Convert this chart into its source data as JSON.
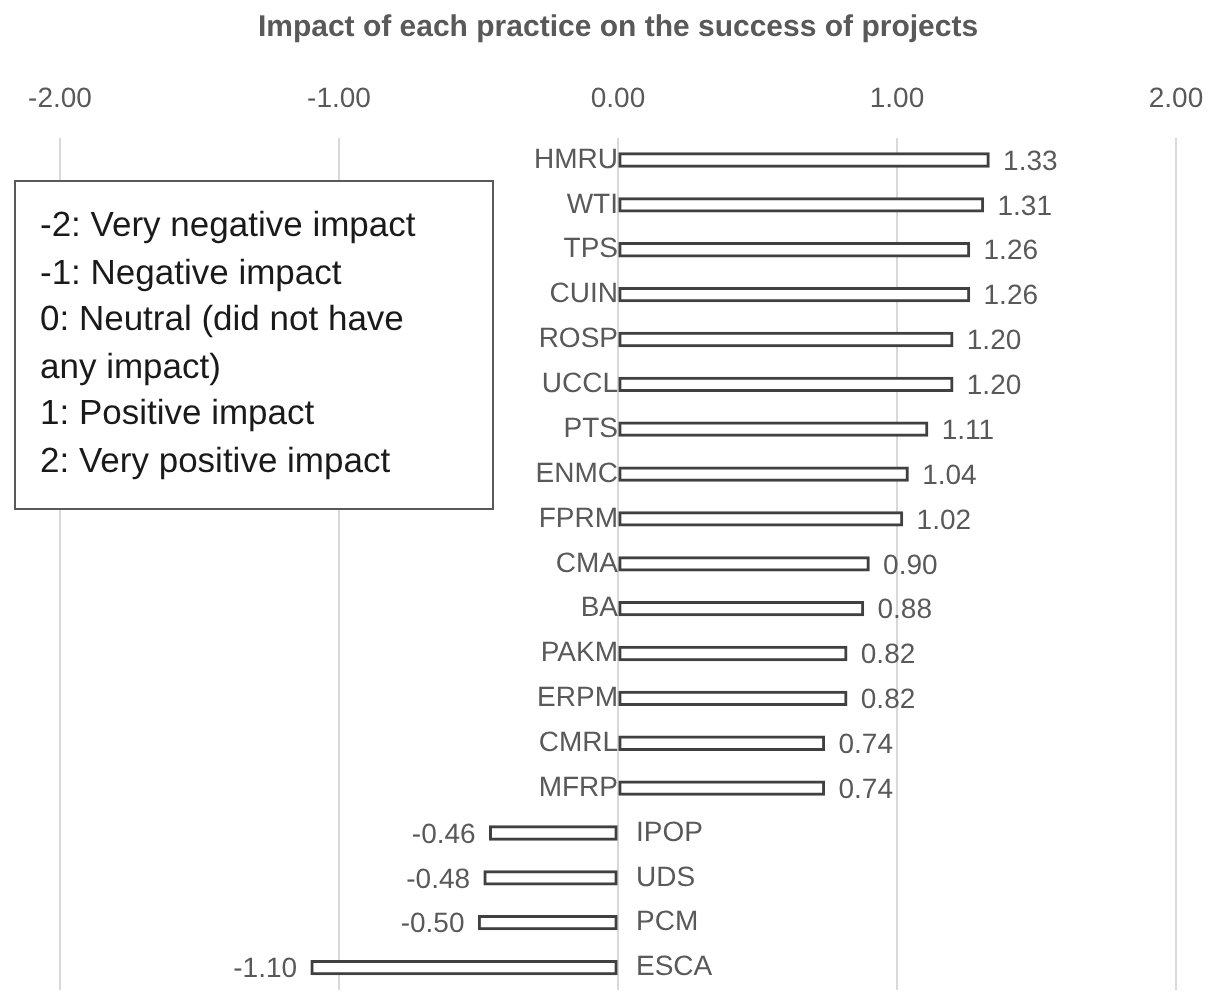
{
  "chart_data": {
    "type": "bar",
    "orientation": "horizontal",
    "title": "Impact of each practice on the success of projects",
    "categories": [
      "HMRU",
      "WTI",
      "TPS",
      "CUIN",
      "ROSP",
      "UCCL",
      "PTS",
      "ENMC",
      "FPRM",
      "CMA",
      "BA",
      "PAKM",
      "ERPM",
      "CMRL",
      "MFRP",
      "IPOP",
      "UDS",
      "PCM",
      "ESCA"
    ],
    "values": [
      1.33,
      1.31,
      1.26,
      1.26,
      1.2,
      1.2,
      1.11,
      1.04,
      1.02,
      0.9,
      0.88,
      0.82,
      0.82,
      0.74,
      0.74,
      -0.46,
      -0.48,
      -0.5,
      -1.1
    ],
    "value_labels": [
      "1.33",
      "1.31",
      "1.26",
      "1.26",
      "1.20",
      "1.20",
      "1.11",
      "1.04",
      "1.02",
      "0.90",
      "0.88",
      "0.82",
      "0.82",
      "0.74",
      "0.74",
      "-0.46",
      "-0.48",
      "-0.50",
      "-1.10"
    ],
    "color": "#ffffff",
    "xlim": [
      -2,
      2
    ],
    "xticks": [
      {
        "value": -2,
        "label": "-2.00"
      },
      {
        "value": -1,
        "label": "-1.00"
      },
      {
        "value": 0,
        "label": "0.00"
      },
      {
        "value": 1,
        "label": "1.00"
      },
      {
        "value": 2,
        "label": "2.00"
      }
    ],
    "grid": "x",
    "legend": false,
    "annotations": [
      "-2: Very negative impact",
      "-1: Negative impact",
      "0: Neutral (did not have any impact)",
      "1: Positive impact",
      "2: Very positive impact"
    ]
  }
}
